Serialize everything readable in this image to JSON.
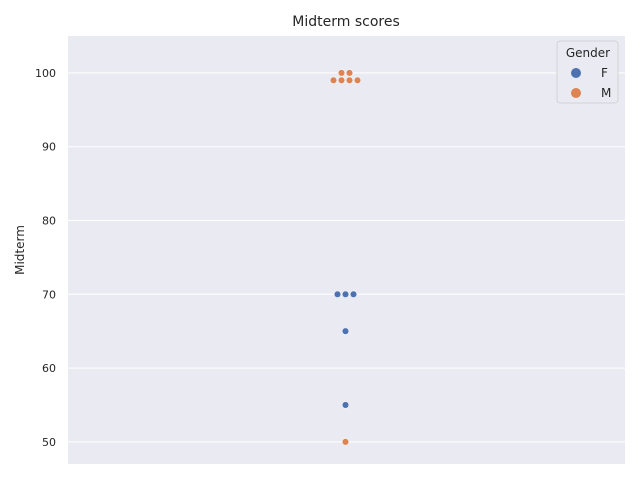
{
  "chart_data": {
    "type": "scatter",
    "style": "swarm",
    "title": "Midterm scores",
    "xlabel": "",
    "ylabel": "Midterm",
    "ylim": [
      47,
      105
    ],
    "yticks": [
      50,
      60,
      70,
      80,
      90,
      100
    ],
    "grid": true,
    "legend": {
      "title": "Gender",
      "placement": "top-right"
    },
    "series": [
      {
        "name": "F",
        "color": "#4c72b0",
        "values": [
          70,
          70,
          70,
          65,
          55
        ]
      },
      {
        "name": "M",
        "color": "#dd8452",
        "values": [
          100,
          100,
          99,
          99,
          99,
          99,
          50
        ]
      }
    ]
  }
}
